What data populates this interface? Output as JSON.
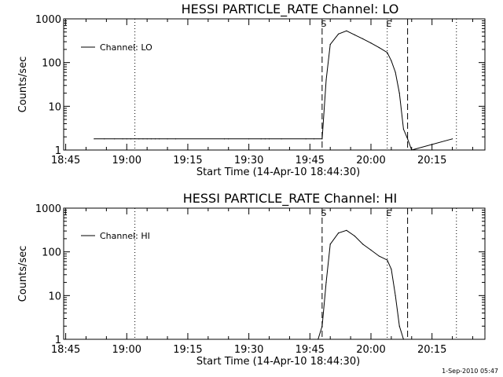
{
  "footer": {
    "timestamp": "1-Sep-2010 05:47"
  },
  "chart_data": [
    {
      "type": "line",
      "title": "HESSI PARTICLE_RATE Channel: LO",
      "xlabel": "Start Time (14-Apr-10 18:44:30)",
      "ylabel": "Counts/sec",
      "yscale": "log",
      "xlim": [
        "18:44:30",
        "20:28:00"
      ],
      "ylim": [
        1,
        1000
      ],
      "xticks": [
        "18:45",
        "19:00",
        "19:15",
        "19:30",
        "19:45",
        "20:00",
        "20:15"
      ],
      "yticks": [
        "1",
        "10",
        "100",
        "1000"
      ],
      "legend": {
        "placement": "top-left",
        "label": "Channel: LO"
      },
      "markers": [
        {
          "label": "S",
          "time": "19:48:00",
          "style": "dashed"
        },
        {
          "label": "E",
          "time": "20:04:00",
          "style": "dotted"
        },
        {
          "label": "",
          "time": "20:09:00",
          "style": "dashed"
        },
        {
          "label": "",
          "time": "19:02:00",
          "style": "dotted"
        },
        {
          "label": "",
          "time": "20:21:00",
          "style": "dotted"
        }
      ],
      "series": [
        {
          "name": "Channel: LO",
          "x": [
            "18:52:00",
            "18:54:30",
            "18:57:00",
            "18:59:00",
            "19:00:00",
            "19:01:00",
            "19:03:00",
            "19:04:00",
            "19:05:00",
            "19:06:00",
            "19:07:00",
            "19:08:00",
            "19:10:00",
            "19:12:00",
            "19:24:00",
            "19:25:00",
            "19:30:00",
            "19:33:00",
            "19:34:00",
            "19:35:00",
            "19:38:00",
            "19:44:00",
            "19:46:00",
            "19:48:00",
            "19:49:00",
            "19:50:00",
            "19:52:00",
            "19:54:00",
            "19:56:00",
            "19:58:00",
            "20:00:00",
            "20:02:00",
            "20:04:00",
            "20:05:00",
            "20:06:00",
            "20:07:00",
            "20:08:00",
            "20:09:00",
            "20:10:00",
            "20:20:00"
          ],
          "y": [
            1.8,
            1.8,
            1.8,
            1.8,
            1.8,
            1.8,
            1.8,
            1.8,
            1.8,
            1.8,
            1.8,
            1.8,
            1.8,
            1.8,
            1.8,
            1.8,
            1.8,
            1.8,
            1.8,
            1.8,
            1.8,
            1.8,
            1.8,
            1.8,
            40,
            260,
            450,
            530,
            430,
            350,
            280,
            220,
            170,
            110,
            60,
            20,
            3,
            1.8,
            1,
            1.8
          ]
        }
      ]
    },
    {
      "type": "line",
      "title": "HESSI PARTICLE_RATE Channel: HI",
      "xlabel": "Start Time (14-Apr-10 18:44:30)",
      "ylabel": "Counts/sec",
      "yscale": "log",
      "xlim": [
        "18:44:30",
        "20:28:00"
      ],
      "ylim": [
        1,
        1000
      ],
      "xticks": [
        "18:45",
        "19:00",
        "19:15",
        "19:30",
        "19:45",
        "20:00",
        "20:15"
      ],
      "yticks": [
        "1",
        "10",
        "100",
        "1000"
      ],
      "legend": {
        "placement": "top-left",
        "label": "Channel: HI"
      },
      "markers": [
        {
          "label": "S",
          "time": "19:48:00",
          "style": "dashed"
        },
        {
          "label": "E",
          "time": "20:04:00",
          "style": "dotted"
        },
        {
          "label": "",
          "time": "20:09:00",
          "style": "dashed"
        },
        {
          "label": "",
          "time": "19:02:00",
          "style": "dotted"
        },
        {
          "label": "",
          "time": "20:21:00",
          "style": "dotted"
        }
      ],
      "series": [
        {
          "name": "Channel: HI",
          "x": [
            "19:47:00",
            "19:48:00",
            "19:49:00",
            "19:50:00",
            "19:52:00",
            "19:54:00",
            "19:56:00",
            "19:58:00",
            "20:00:00",
            "20:02:00",
            "20:04:00",
            "20:05:00",
            "20:06:00",
            "20:07:00",
            "20:08:00"
          ],
          "y": [
            1,
            2,
            20,
            150,
            270,
            310,
            230,
            150,
            110,
            80,
            65,
            40,
            10,
            2,
            1
          ]
        }
      ]
    }
  ]
}
